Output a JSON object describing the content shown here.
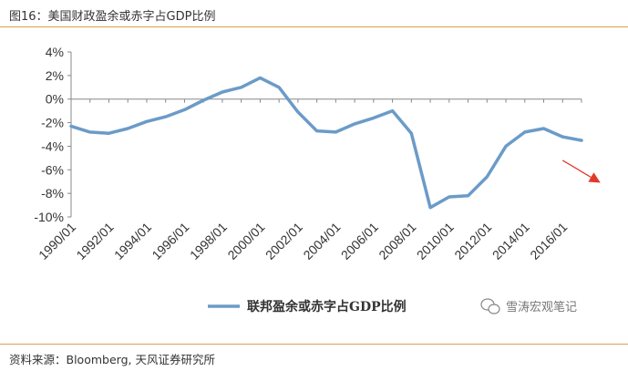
{
  "header": {
    "title": "图16：美国财政盈余或赤字占GDP比例"
  },
  "footer": {
    "source": "资料来源：Bloomberg, 天风证券研究所"
  },
  "watermark": {
    "text": "雪涛宏观笔记",
    "icon": "wechat-logo-icon"
  },
  "colors": {
    "series": "#6b9bc8",
    "arrow": "#e03a2a",
    "rule": "#d8a24a"
  },
  "chart_data": {
    "type": "line",
    "title": "",
    "xlabel": "",
    "ylabel": "",
    "ylim": [
      -10,
      4
    ],
    "y_ticks": [
      4,
      2,
      0,
      -2,
      -4,
      -6,
      -8,
      -10
    ],
    "y_tick_labels": [
      "4%",
      "2%",
      "0%",
      "-2%",
      "-4%",
      "-6%",
      "-8%",
      "-10%"
    ],
    "x_tick_labels": [
      "1990/01",
      "1992/01",
      "1994/01",
      "1996/01",
      "1998/01",
      "2000/01",
      "2002/01",
      "2004/01",
      "2006/01",
      "2008/01",
      "2010/01",
      "2012/01",
      "2014/01",
      "2016/01"
    ],
    "x_range": [
      1990,
      2017
    ],
    "grid": false,
    "legend": "bottom",
    "series": [
      {
        "name": "联邦盈余或赤字占GDP比例",
        "x": [
          1990,
          1991,
          1992,
          1993,
          1994,
          1995,
          1996,
          1997,
          1998,
          1999,
          2000,
          2001,
          2002,
          2003,
          2004,
          2005,
          2006,
          2007,
          2008,
          2009,
          2010,
          2011,
          2012,
          2013,
          2014,
          2015,
          2016,
          2017
        ],
        "values": [
          -2.3,
          -2.8,
          -2.9,
          -2.5,
          -1.9,
          -1.5,
          -0.9,
          -0.1,
          0.6,
          1.0,
          1.8,
          1.0,
          -1.1,
          -2.7,
          -2.8,
          -2.1,
          -1.6,
          -1.0,
          -2.9,
          -9.2,
          -8.3,
          -8.2,
          -6.6,
          -4.0,
          -2.8,
          -2.5,
          -3.2,
          -3.5
        ]
      }
    ],
    "annotations": [
      {
        "type": "arrow",
        "direction": "down-right",
        "from": [
          2016.0,
          -5.2
        ],
        "to": [
          2018.0,
          -7.1
        ]
      }
    ]
  }
}
